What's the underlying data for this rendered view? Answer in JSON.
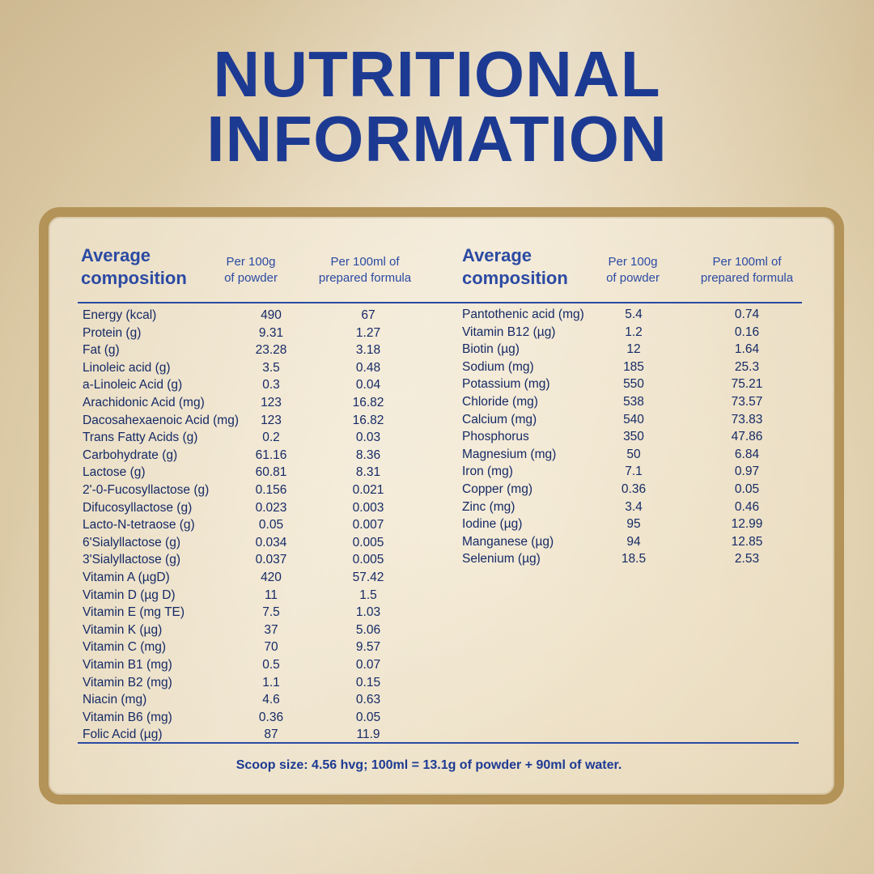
{
  "title": {
    "line1": "NUTRITIONAL",
    "line2": "INFORMATION"
  },
  "headers": {
    "composition_line1": "Average",
    "composition_line2": "composition",
    "per100g_line1": "Per 100g",
    "per100g_line2": "of powder",
    "per100ml_line1": "Per 100ml of",
    "per100ml_line2": "prepared formula"
  },
  "left_rows": [
    {
      "name": "Energy (kcal)",
      "g": "490",
      "ml": "67"
    },
    {
      "name": "Protein (g)",
      "g": "9.31",
      "ml": "1.27"
    },
    {
      "name": "Fat (g)",
      "g": "23.28",
      "ml": "3.18"
    },
    {
      "name": "Linoleic acid (g)",
      "g": "3.5",
      "ml": "0.48"
    },
    {
      "name": "a-Linoleic Acid (g)",
      "g": "0.3",
      "ml": "0.04"
    },
    {
      "name": "Arachidonic Acid (mg)",
      "g": "123",
      "ml": "16.82"
    },
    {
      "name": "Dacosahexaenoic Acid (mg)",
      "g": "123",
      "ml": "16.82"
    },
    {
      "name": "Trans Fatty Acids (g)",
      "g": "0.2",
      "ml": "0.03"
    },
    {
      "name": "Carbohydrate (g)",
      "g": "61.16",
      "ml": "8.36"
    },
    {
      "name": "Lactose (g)",
      "g": "60.81",
      "ml": "8.31"
    },
    {
      "name": "2'-0-Fucosyllactose (g)",
      "g": "0.156",
      "ml": "0.021"
    },
    {
      "name": "Difucosyllactose (g)",
      "g": "0.023",
      "ml": "0.003"
    },
    {
      "name": "Lacto-N-tetraose (g)",
      "g": "0.05",
      "ml": "0.007"
    },
    {
      "name": "6'Sialyllactose (g)",
      "g": "0.034",
      "ml": "0.005"
    },
    {
      "name": "3'Sialyllactose (g)",
      "g": "0.037",
      "ml": "0.005"
    },
    {
      "name": "Vitamin A (µgD)",
      "g": "420",
      "ml": "57.42"
    },
    {
      "name": "Vitamin D (µg D)",
      "g": "11",
      "ml": "1.5"
    },
    {
      "name": "Vitamin E (mg TE)",
      "g": "7.5",
      "ml": "1.03"
    },
    {
      "name": "Vitamin K (µg)",
      "g": "37",
      "ml": "5.06"
    },
    {
      "name": "Vitamin C (mg)",
      "g": "70",
      "ml": "9.57"
    },
    {
      "name": "Vitamin B1 (mg)",
      "g": "0.5",
      "ml": "0.07"
    },
    {
      "name": "Vitamin B2 (mg)",
      "g": "1.1",
      "ml": "0.15"
    },
    {
      "name": "Niacin (mg)",
      "g": "4.6",
      "ml": "0.63"
    },
    {
      "name": "Vitamin B6 (mg)",
      "g": "0.36",
      "ml": "0.05"
    },
    {
      "name": "Folic Acid (µg)",
      "g": "87",
      "ml": "11.9"
    }
  ],
  "right_rows": [
    {
      "name": "Pantothenic acid (mg)",
      "g": "5.4",
      "ml": "0.74"
    },
    {
      "name": "Vitamin B12 (µg)",
      "g": "1.2",
      "ml": "0.16"
    },
    {
      "name": "Biotin (µg)",
      "g": "12",
      "ml": "1.64"
    },
    {
      "name": "Sodium (mg)",
      "g": "185",
      "ml": "25.3"
    },
    {
      "name": "Potassium (mg)",
      "g": "550",
      "ml": "75.21"
    },
    {
      "name": "Chloride (mg)",
      "g": "538",
      "ml": "73.57"
    },
    {
      "name": "Calcium (mg)",
      "g": "540",
      "ml": "73.83"
    },
    {
      "name": "Phosphorus",
      "g": "350",
      "ml": "47.86"
    },
    {
      "name": "Magnesium (mg)",
      "g": "50",
      "ml": "6.84"
    },
    {
      "name": "Iron (mg)",
      "g": "7.1",
      "ml": "0.97"
    },
    {
      "name": "Copper (mg)",
      "g": "0.36",
      "ml": "0.05"
    },
    {
      "name": "Zinc (mg)",
      "g": "3.4",
      "ml": "0.46"
    },
    {
      "name": "Iodine (µg)",
      "g": "95",
      "ml": "12.99"
    },
    {
      "name": "Manganese (µg)",
      "g": "94",
      "ml": "12.85"
    },
    {
      "name": "Selenium (µg)",
      "g": "18.5",
      "ml": "2.53"
    }
  ],
  "footer": "Scoop size: 4.56  hvg; 100ml = 13.1g of powder + 90ml of water.",
  "colors": {
    "title": "#1d3a93",
    "text": "#152a66",
    "frame": "#b39357"
  }
}
